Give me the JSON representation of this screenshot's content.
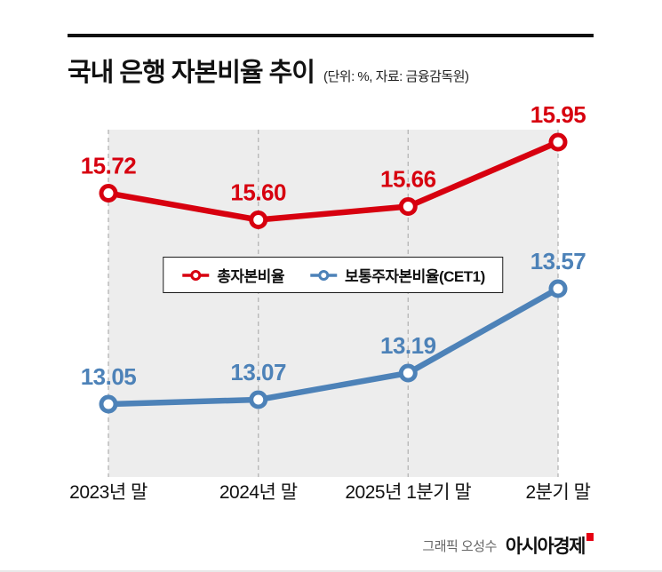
{
  "header": {
    "title": "국내 은행 자본비율 추이",
    "subtitle": "(단위: %, 자료: 금융감독원)"
  },
  "chart_data": {
    "type": "line",
    "title": "국내 은행 자본비율 추이",
    "unit": "%",
    "source": "금융감독원",
    "categories": [
      "2023년 말",
      "2024년 말",
      "2025년 1분기 말",
      "2분기 말"
    ],
    "series": [
      {
        "name": "총자본비율",
        "color": "#d7000f",
        "values": [
          15.72,
          15.6,
          15.66,
          15.95
        ]
      },
      {
        "name": "보통주자본비율(CET1)",
        "color": "#4d82b8",
        "values": [
          13.05,
          13.07,
          13.19,
          13.57
        ]
      }
    ],
    "grid": "vertical-dashed",
    "legend_position": "center",
    "plot_background": "#ededed",
    "value_labels": "shown above points, 2 decimal places"
  },
  "footer": {
    "credit": "그래픽 오성수",
    "brand": "아시아경제"
  }
}
